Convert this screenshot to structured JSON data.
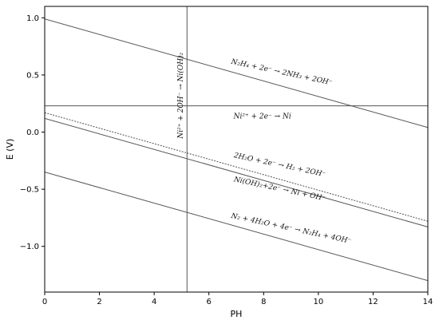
{
  "chart_data": {
    "type": "line",
    "title": "",
    "xlabel": "PH",
    "ylabel": "E (V)",
    "xlim": [
      0,
      14
    ],
    "ylim": [
      -1.4,
      1.1
    ],
    "xticks": [
      "0",
      "2",
      "4",
      "6",
      "8",
      "10",
      "12",
      "14"
    ],
    "yticks": [
      "1.0",
      "0.5",
      "0.0",
      "-0.5",
      "-1.0"
    ],
    "grid": false,
    "line_color": "#555555",
    "series": [
      {
        "id": "n2h4-nh3",
        "x": [
          0,
          14
        ],
        "y": [
          0.99,
          0.04
        ],
        "style": "solid"
      },
      {
        "id": "ni2-ni",
        "x": [
          0,
          14
        ],
        "y": [
          0.23,
          0.23
        ],
        "style": "solid"
      },
      {
        "id": "h2o-h2",
        "x": [
          0,
          14
        ],
        "y": [
          0.17,
          -0.78
        ],
        "style": "dotted"
      },
      {
        "id": "nioh2-ni",
        "x": [
          0,
          14
        ],
        "y": [
          0.12,
          -0.83
        ],
        "style": "solid"
      },
      {
        "id": "n2-n2h4",
        "x": [
          0,
          14
        ],
        "y": [
          -0.35,
          -1.3
        ],
        "style": "solid"
      },
      {
        "id": "ni2-nioh2",
        "x": [
          5.2,
          5.2
        ],
        "y": [
          -1.4,
          1.1
        ],
        "style": "solid"
      }
    ],
    "annotations": [
      {
        "id": "n2h4-nh3",
        "text": "N₂H₄ + 2e⁻ → 2NH₃ + 2OH⁻",
        "x": 6.8,
        "y": 0.6,
        "rotate": 12,
        "anchor": "start"
      },
      {
        "id": "ni2-ni",
        "text": "Ni²⁺ + 2e⁻ → Ni",
        "x": 6.9,
        "y": 0.12,
        "rotate": 0,
        "anchor": "start"
      },
      {
        "id": "h2o-h2",
        "text": "2H₂O + 2e⁻ → H₂ + 2OH⁻",
        "x": 6.9,
        "y": -0.22,
        "rotate": 12,
        "anchor": "start"
      },
      {
        "id": "nioh2-ni",
        "text": "Ni(OH)₂+2e⁻ → Ni + OH⁻",
        "x": 6.9,
        "y": -0.43,
        "rotate": 12,
        "anchor": "start"
      },
      {
        "id": "n2-n2h4",
        "text": "N₂ + 4H₂O + 4e⁻ → N₂H₄ + 4OH⁻",
        "x": 6.8,
        "y": -0.75,
        "rotate": 12,
        "anchor": "start"
      },
      {
        "id": "ni2-nioh2",
        "text": "Ni²⁺ + 2OH⁻ → Ni(OH)₂",
        "x": 5.05,
        "y": 0.32,
        "rotate": -90,
        "anchor": "middle"
      }
    ]
  }
}
